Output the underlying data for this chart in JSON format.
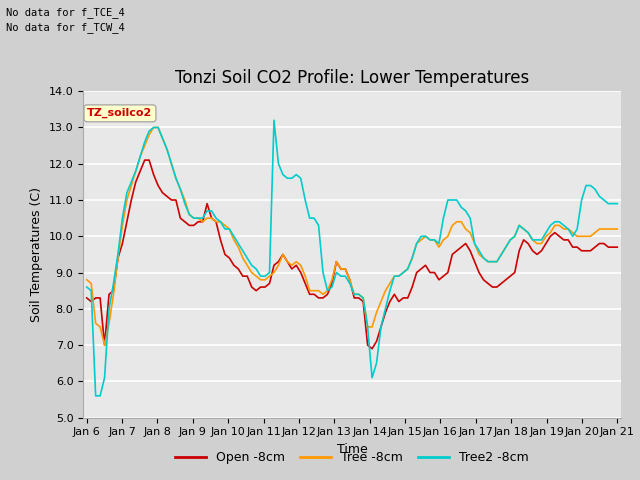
{
  "title": "Tonzi Soil CO2 Profile: Lower Temperatures",
  "ylabel": "Soil Temperatures (C)",
  "xlabel": "Time",
  "note_lines": [
    "No data for f_TCE_4",
    "No data for f_TCW_4"
  ],
  "box_label": "TZ_soilco2",
  "ylim": [
    5.0,
    14.0
  ],
  "yticks": [
    5.0,
    6.0,
    7.0,
    8.0,
    9.0,
    10.0,
    11.0,
    12.0,
    13.0,
    14.0
  ],
  "xtick_labels": [
    "Jan 6",
    "Jan 7",
    "Jan 8",
    "Jan 9",
    "Jan 10",
    "Jan 11",
    "Jan 12",
    "Jan 13",
    "Jan 14",
    "Jan 15",
    "Jan 16",
    "Jan 17",
    "Jan 18",
    "Jan 19",
    "Jan 20",
    "Jan 21"
  ],
  "legend_labels": [
    "Open -8cm",
    "Tree -8cm",
    "Tree2 -8cm"
  ],
  "line_colors": [
    "#cc0000",
    "#ff9900",
    "#00cccc"
  ],
  "fig_bg_color": "#d0d0d0",
  "plot_bg_color": "#e8e8e8",
  "grid_color": "#ffffff",
  "title_fontsize": 12,
  "open_8cm": [
    8.3,
    8.2,
    8.3,
    8.3,
    7.0,
    8.4,
    8.5,
    9.4,
    9.8,
    10.4,
    11.0,
    11.5,
    11.8,
    12.1,
    12.1,
    11.7,
    11.4,
    11.2,
    11.1,
    11.0,
    11.0,
    10.5,
    10.4,
    10.3,
    10.3,
    10.4,
    10.4,
    10.9,
    10.5,
    10.4,
    9.9,
    9.5,
    9.4,
    9.2,
    9.1,
    8.9,
    8.9,
    8.6,
    8.5,
    8.6,
    8.6,
    8.7,
    9.2,
    9.3,
    9.5,
    9.3,
    9.1,
    9.2,
    9.0,
    8.7,
    8.4,
    8.4,
    8.3,
    8.3,
    8.4,
    8.7,
    9.3,
    9.1,
    9.1,
    8.8,
    8.3,
    8.3,
    8.2,
    7.0,
    6.9,
    7.1,
    7.5,
    7.9,
    8.2,
    8.4,
    8.2,
    8.3,
    8.3,
    8.6,
    9.0,
    9.1,
    9.2,
    9.0,
    9.0,
    8.8,
    8.9,
    9.0,
    9.5,
    9.6,
    9.7,
    9.8,
    9.6,
    9.3,
    9.0,
    8.8,
    8.7,
    8.6,
    8.6,
    8.7,
    8.8,
    8.9,
    9.0,
    9.6,
    9.9,
    9.8,
    9.6,
    9.5,
    9.6,
    9.8,
    10.0,
    10.1,
    10.0,
    9.9,
    9.9,
    9.7,
    9.7,
    9.6,
    9.6,
    9.6,
    9.7,
    9.8,
    9.8,
    9.7,
    9.7,
    9.7
  ],
  "tree_8cm": [
    8.8,
    8.7,
    7.6,
    7.5,
    7.0,
    7.6,
    8.4,
    9.4,
    10.3,
    11.0,
    11.4,
    11.8,
    12.2,
    12.5,
    12.8,
    13.0,
    13.0,
    12.7,
    12.4,
    12.0,
    11.6,
    11.3,
    11.0,
    10.6,
    10.5,
    10.5,
    10.4,
    10.5,
    10.5,
    10.4,
    10.4,
    10.3,
    10.2,
    9.9,
    9.7,
    9.4,
    9.2,
    9.0,
    8.9,
    8.8,
    8.8,
    8.9,
    9.0,
    9.2,
    9.5,
    9.3,
    9.2,
    9.3,
    9.2,
    8.9,
    8.5,
    8.5,
    8.5,
    8.4,
    8.5,
    8.8,
    9.3,
    9.1,
    9.1,
    8.8,
    8.4,
    8.4,
    8.3,
    7.5,
    7.5,
    7.9,
    8.2,
    8.5,
    8.7,
    8.9,
    8.9,
    9.0,
    9.1,
    9.4,
    9.8,
    9.9,
    10.0,
    9.9,
    9.9,
    9.7,
    9.9,
    10.0,
    10.3,
    10.4,
    10.4,
    10.2,
    10.1,
    9.8,
    9.5,
    9.4,
    9.3,
    9.3,
    9.3,
    9.5,
    9.7,
    9.9,
    10.0,
    10.3,
    10.2,
    10.1,
    9.9,
    9.8,
    9.8,
    10.0,
    10.1,
    10.3,
    10.3,
    10.2,
    10.2,
    10.1,
    10.0,
    10.0,
    10.0,
    10.0,
    10.1,
    10.2,
    10.2,
    10.2,
    10.2,
    10.2
  ],
  "tree2_8cm": [
    8.6,
    8.5,
    5.6,
    5.6,
    6.1,
    8.0,
    8.7,
    9.5,
    10.5,
    11.2,
    11.5,
    11.8,
    12.2,
    12.6,
    12.9,
    13.0,
    13.0,
    12.7,
    12.4,
    12.0,
    11.6,
    11.3,
    10.9,
    10.6,
    10.5,
    10.5,
    10.5,
    10.7,
    10.7,
    10.5,
    10.4,
    10.2,
    10.2,
    10.0,
    9.8,
    9.6,
    9.4,
    9.2,
    9.1,
    8.9,
    8.9,
    9.0,
    13.2,
    12.0,
    11.7,
    11.6,
    11.6,
    11.7,
    11.6,
    11.0,
    10.5,
    10.5,
    10.3,
    9.0,
    8.5,
    8.6,
    9.0,
    8.9,
    8.9,
    8.7,
    8.4,
    8.4,
    8.3,
    7.5,
    6.1,
    6.5,
    7.5,
    8.0,
    8.5,
    8.9,
    8.9,
    9.0,
    9.1,
    9.4,
    9.8,
    10.0,
    10.0,
    9.9,
    9.9,
    9.8,
    10.5,
    11.0,
    11.0,
    11.0,
    10.8,
    10.7,
    10.5,
    9.8,
    9.6,
    9.4,
    9.3,
    9.3,
    9.3,
    9.5,
    9.7,
    9.9,
    10.0,
    10.3,
    10.2,
    10.1,
    9.9,
    9.9,
    9.9,
    10.1,
    10.3,
    10.4,
    10.4,
    10.3,
    10.2,
    10.0,
    10.2,
    11.0,
    11.4,
    11.4,
    11.3,
    11.1,
    11.0,
    10.9,
    10.9,
    10.9
  ]
}
